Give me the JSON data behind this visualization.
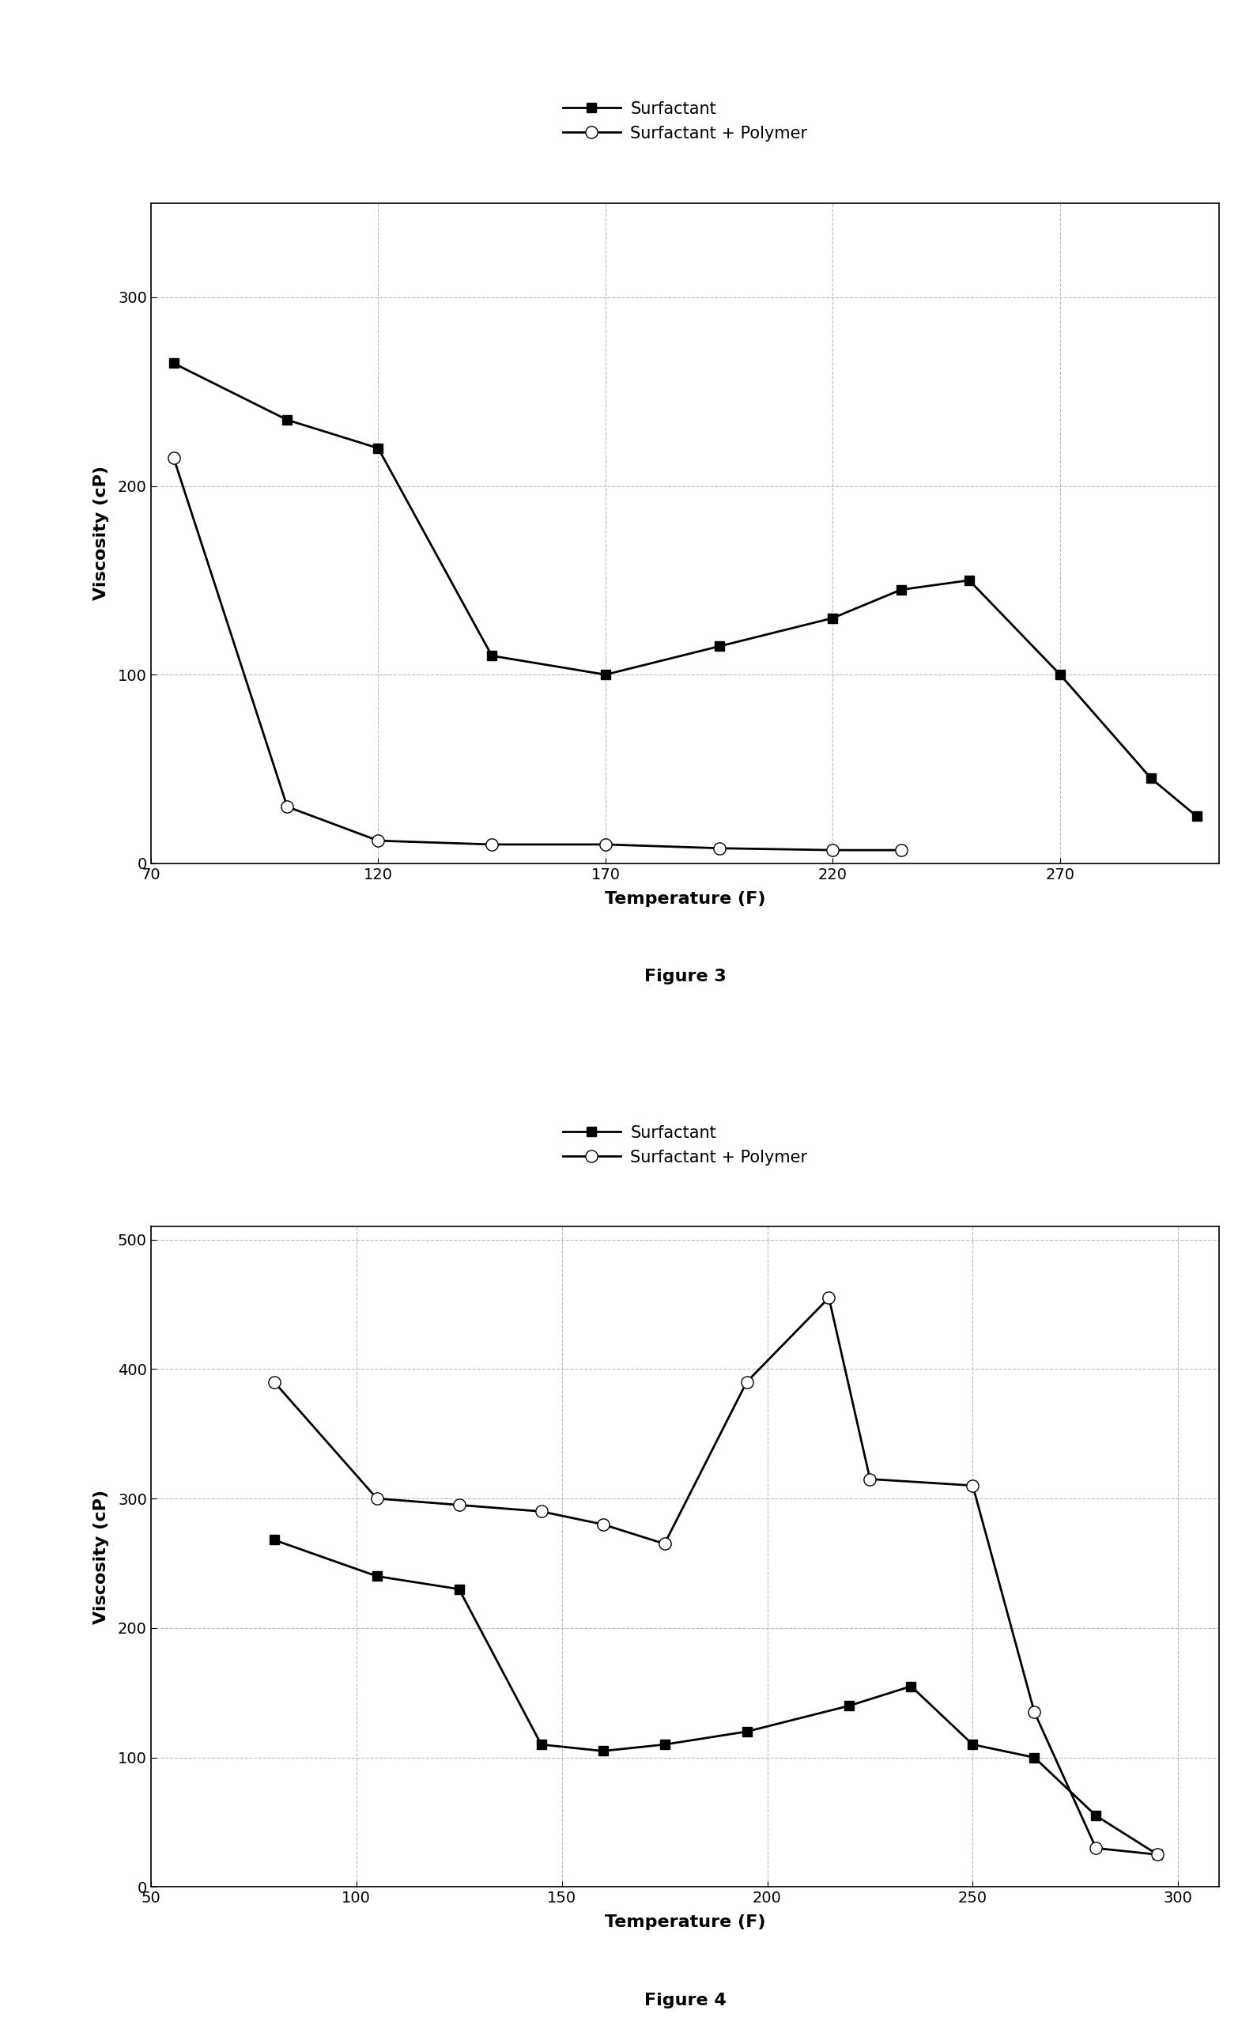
{
  "fig3": {
    "surfactant_x": [
      75,
      100,
      120,
      145,
      170,
      195,
      220,
      235,
      250,
      270,
      290,
      300
    ],
    "surfactant_y": [
      265,
      235,
      220,
      110,
      100,
      115,
      130,
      145,
      150,
      100,
      45,
      25
    ],
    "polymer_x": [
      75,
      100,
      120,
      145,
      170,
      195,
      220,
      235
    ],
    "polymer_y": [
      215,
      30,
      12,
      10,
      10,
      8,
      7,
      7
    ],
    "xlabel": "Temperature (F)",
    "ylabel": "Viscosity (cP)",
    "caption": "Figure 3",
    "xlim": [
      70,
      305
    ],
    "ylim": [
      0,
      350
    ],
    "xticks": [
      70,
      120,
      170,
      220,
      270
    ],
    "yticks": [
      0,
      100,
      200,
      300
    ]
  },
  "fig4": {
    "surfactant_x": [
      80,
      105,
      125,
      145,
      160,
      175,
      195,
      220,
      235,
      250,
      265,
      280,
      295
    ],
    "surfactant_y": [
      268,
      240,
      230,
      110,
      105,
      110,
      120,
      140,
      155,
      110,
      100,
      55,
      25
    ],
    "polymer_x": [
      80,
      105,
      125,
      145,
      160,
      175,
      195,
      215,
      225,
      250,
      265,
      280,
      295
    ],
    "polymer_y": [
      390,
      300,
      295,
      290,
      280,
      265,
      390,
      455,
      315,
      310,
      135,
      30,
      25
    ],
    "xlabel": "Temperature (F)",
    "ylabel": "Viscosity (cP)",
    "caption": "Figure 4",
    "xlim": [
      50,
      310
    ],
    "ylim": [
      0,
      510
    ],
    "xticks": [
      50,
      100,
      150,
      200,
      250,
      300
    ],
    "yticks": [
      0,
      100,
      200,
      300,
      400,
      500
    ]
  },
  "legend_surfactant": "Surfactant",
  "legend_polymer": "Surfactant + Polymer",
  "line_color": "#000000",
  "grid_color": "#bbbbbb",
  "background_color": "#ffffff",
  "axis_label_fontsize": 16,
  "tick_fontsize": 14,
  "legend_fontsize": 15,
  "caption_fontsize": 16
}
